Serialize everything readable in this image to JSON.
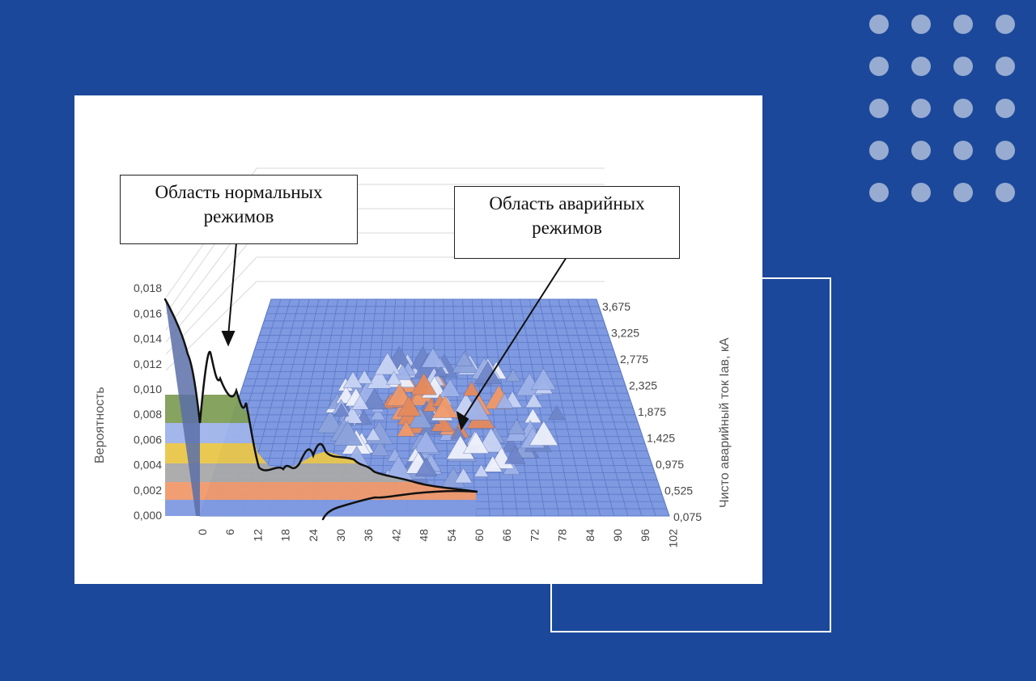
{
  "chart_data": {
    "type": "surface",
    "title": "",
    "ylabel": "Вероятность",
    "xlabel": "",
    "zlabel": "Чисто аварийный ток Iав, кА",
    "ylim": [
      0,
      0.018
    ],
    "y_ticks": [
      "0,000",
      "0,002",
      "0,004",
      "0,006",
      "0,008",
      "0,010",
      "0,012",
      "0,014",
      "0,016",
      "0,018"
    ],
    "x_ticks": [
      "0",
      "6",
      "12",
      "18",
      "24",
      "30",
      "36",
      "42",
      "48",
      "54",
      "60",
      "66",
      "72",
      "78",
      "84",
      "90",
      "96",
      "102"
    ],
    "z_ticks": [
      "0,075",
      "0,525",
      "0,975",
      "1,425",
      "1,875",
      "2,325",
      "2,775",
      "3,225",
      "3,675"
    ],
    "annotations": [
      {
        "label": "normal",
        "text_line1": "Область нормальных",
        "text_line2": "режимов"
      },
      {
        "label": "emergency",
        "text_line1": "Область аварийных",
        "text_line2": "режимов"
      }
    ],
    "peak_profile": [
      {
        "x": 0,
        "value": 0.018
      },
      {
        "x": 3,
        "value": 0.014
      },
      {
        "x": 6,
        "value": 0.0105
      },
      {
        "x": 12,
        "value": 0.0065
      },
      {
        "x": 24,
        "value": 0.0052
      },
      {
        "x": 36,
        "value": 0.0035
      },
      {
        "x": 48,
        "value": 0.002
      }
    ]
  },
  "colors": {
    "background": "#1b489a",
    "surface": "#7f9ae0",
    "grid": "#5b78c8",
    "orange": "#f0996a",
    "yellow": "#e9c64a",
    "green": "#7f9e57"
  }
}
